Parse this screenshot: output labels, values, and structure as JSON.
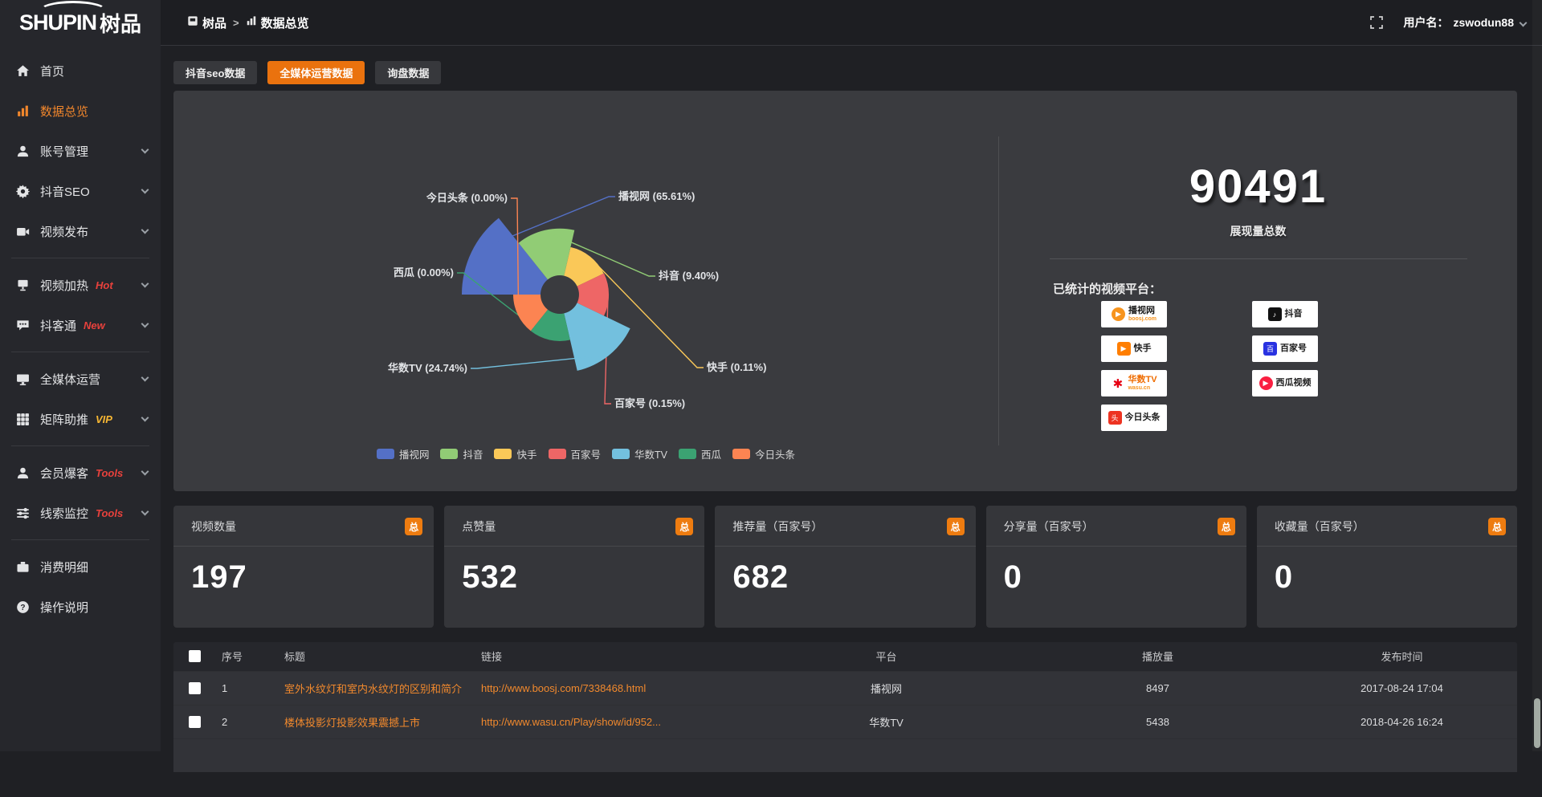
{
  "logo": {
    "en": "SHUPIN",
    "cn": "树品"
  },
  "topbar": {
    "breadcrumb": [
      {
        "icon": "app-icon",
        "label": "树品"
      },
      {
        "icon": "chart-icon",
        "label": "数据总览"
      }
    ],
    "separator": ">",
    "username_label": "用户名：",
    "username": "zswodun88"
  },
  "sidebar": {
    "items": [
      {
        "icon": "home-icon",
        "label": "首页"
      },
      {
        "icon": "bar-chart-icon",
        "label": "数据总览",
        "active": true
      },
      {
        "icon": "user-icon",
        "label": "账号管理",
        "expandable": true
      },
      {
        "icon": "gear-icon",
        "label": "抖音SEO",
        "expandable": true
      },
      {
        "icon": "video-upload-icon",
        "label": "视频发布",
        "expandable": true
      },
      {
        "divider": true
      },
      {
        "icon": "screen-icon",
        "label": "视频加热",
        "tag": "Hot",
        "tag_color": "#e8413c",
        "expandable": true
      },
      {
        "icon": "chat-icon",
        "label": "抖客通",
        "tag": "New",
        "tag_color": "#e8413c",
        "expandable": true
      },
      {
        "divider": true
      },
      {
        "icon": "monitor-icon",
        "label": "全媒体运营",
        "expandable": true
      },
      {
        "icon": "grid-icon",
        "label": "矩阵助推",
        "tag": "VIP",
        "tag_color": "#f7b733",
        "expandable": true
      },
      {
        "divider": true
      },
      {
        "icon": "user-icon",
        "label": "会员爆客",
        "tag": "Tools",
        "tag_color": "#e8413c",
        "expandable": true
      },
      {
        "icon": "sliders-icon",
        "label": "线索监控",
        "tag": "Tools",
        "tag_color": "#e8413c",
        "expandable": true
      },
      {
        "divider": true
      },
      {
        "icon": "wallet-icon",
        "label": "消费明细"
      },
      {
        "icon": "help-icon",
        "label": "操作说明"
      }
    ]
  },
  "tabs": [
    {
      "label": "抖音seo数据",
      "active": false
    },
    {
      "label": "全媒体运营数据",
      "active": true
    },
    {
      "label": "询盘数据",
      "active": false
    }
  ],
  "chart_data": {
    "type": "pie",
    "variant": "nightingale-rose",
    "unit": "percent",
    "legend_position": "bottom",
    "series": [
      {
        "name": "播视网",
        "value": 65.61,
        "color": "#5470c6"
      },
      {
        "name": "抖音",
        "value": 9.4,
        "color": "#91cc75"
      },
      {
        "name": "快手",
        "value": 0.11,
        "color": "#fac858"
      },
      {
        "name": "百家号",
        "value": 0.15,
        "color": "#ee6666"
      },
      {
        "name": "华数TV",
        "value": 24.74,
        "color": "#73c0de"
      },
      {
        "name": "西瓜",
        "value": 0.0,
        "color": "#3ba272"
      },
      {
        "name": "今日头条",
        "value": 0.0,
        "color": "#fc8452"
      }
    ]
  },
  "overview": {
    "total_value": "90491",
    "total_label": "展现量总数",
    "platforms_label": "已统计的视频平台：",
    "platforms": [
      {
        "name": "播视网",
        "sub": "boosj.com",
        "icon": "boosj-logo",
        "color": "#f7941d",
        "sub_color": "#f7941d"
      },
      {
        "name": "抖音",
        "icon": "douyin-logo",
        "color": "#111111"
      },
      {
        "name": "快手",
        "icon": "kuaishou-logo",
        "color": "#ff7e00"
      },
      {
        "name": "百家号",
        "icon": "baijiahao-logo",
        "color": "#2932e1"
      },
      {
        "name": "华数TV",
        "sub": "wasu.cn",
        "icon": "wasu-logo",
        "color": "#e60012",
        "sub_color": "#f7941d",
        "name_color": "#ef6c00"
      },
      {
        "name": "西瓜视频",
        "icon": "xigua-logo",
        "color": "#fa1f41"
      },
      {
        "name": "今日头条",
        "icon": "toutiao-logo",
        "color": "#ed3321"
      }
    ]
  },
  "cards": [
    {
      "title": "视频数量",
      "badge": "总",
      "value": "197"
    },
    {
      "title": "点赞量",
      "badge": "总",
      "value": "532"
    },
    {
      "title": "推荐量（百家号）",
      "badge": "总",
      "value": "682"
    },
    {
      "title": "分享量（百家号）",
      "badge": "总",
      "value": "0"
    },
    {
      "title": "收藏量（百家号）",
      "badge": "总",
      "value": "0"
    }
  ],
  "table": {
    "columns": [
      "",
      "序号",
      "标题",
      "链接",
      "平台",
      "播放量",
      "发布时间"
    ],
    "rows": [
      {
        "index": "1",
        "title": "室外水纹灯和室内水纹灯的区别和简介",
        "link": "http://www.boosj.com/7338468.html",
        "platform": "播视网",
        "plays": "8497",
        "time": "2017-08-24 17:04"
      },
      {
        "index": "2",
        "title": "楼体投影灯投影效果震撼上市",
        "link": "http://www.wasu.cn/Play/show/id/952...",
        "platform": "华数TV",
        "plays": "5438",
        "time": "2018-04-26 16:24"
      }
    ]
  },
  "colors": {
    "accent": "#ea720e",
    "link": "#f1892d",
    "hot": "#e8413c",
    "vip": "#f7b733",
    "panel": "#3a3b3f"
  }
}
